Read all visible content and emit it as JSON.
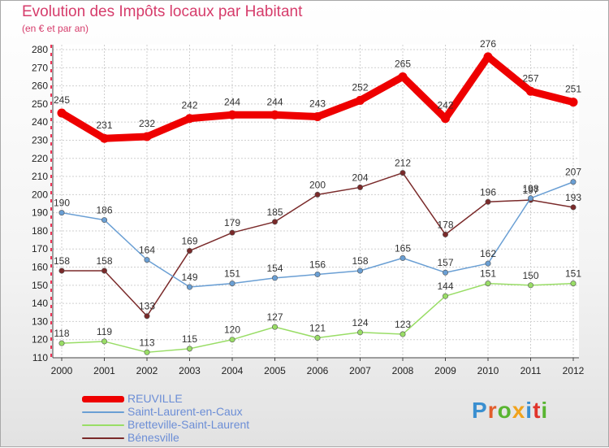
{
  "chart_data": {
    "type": "line",
    "title": "Evolution des Impôts locaux par Habitant",
    "subtitle": "(en € et par an)",
    "xlabel": "",
    "ylabel": "",
    "categories": [
      "2000",
      "2001",
      "2002",
      "2003",
      "2004",
      "2005",
      "2006",
      "2007",
      "2008",
      "2009",
      "2010",
      "2011",
      "2012"
    ],
    "ylim": [
      110,
      280
    ],
    "yticks": [
      110,
      120,
      130,
      140,
      150,
      160,
      170,
      180,
      190,
      200,
      210,
      220,
      230,
      240,
      250,
      260,
      270,
      280
    ],
    "grid": true,
    "legend_position": "bottom-left",
    "series": [
      {
        "name": "REUVILLE",
        "color": "#ee0000",
        "values": [
          245,
          231,
          232,
          242,
          244,
          244,
          243,
          252,
          265,
          242,
          276,
          257,
          251
        ]
      },
      {
        "name": "Saint-Laurent-en-Caux",
        "color": "#6a9fd4",
        "values": [
          190,
          186,
          164,
          149,
          151,
          154,
          156,
          158,
          165,
          157,
          162,
          198,
          207
        ]
      },
      {
        "name": "Bretteville-Saint-Laurent",
        "color": "#99dd66",
        "values": [
          118,
          119,
          113,
          115,
          120,
          127,
          121,
          124,
          123,
          144,
          151,
          150,
          151
        ]
      },
      {
        "name": "Bénesville",
        "color": "#7a2a2a",
        "values": [
          158,
          158,
          133,
          169,
          179,
          185,
          200,
          204,
          212,
          178,
          196,
          197,
          193
        ]
      }
    ]
  },
  "logo": {
    "text": "Proxiti",
    "colors": [
      "#3a8fd0",
      "#e25d2c",
      "#59b531",
      "#f1a31c",
      "#3a8fd0",
      "#e0342b",
      "#59b531"
    ]
  }
}
